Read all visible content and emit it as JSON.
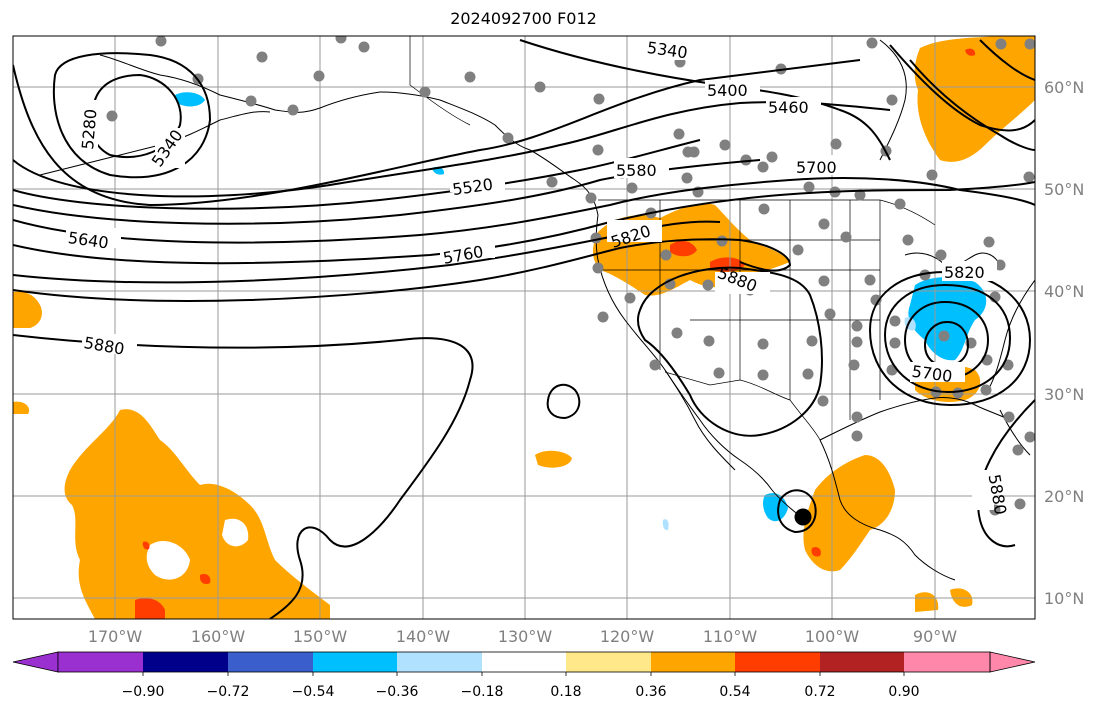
{
  "title": "2024092700 F012",
  "longitude_labels": [
    "170°W",
    "160°W",
    "150°W",
    "140°W",
    "130°W",
    "120°W",
    "110°W",
    "100°W",
    "90°W"
  ],
  "latitude_labels": [
    "60°N",
    "50°N",
    "40°N",
    "30°N",
    "20°N",
    "10°N"
  ],
  "contour_labels": [
    "5340",
    "5400",
    "5460",
    "5280",
    "5340",
    "5520",
    "5580",
    "5700",
    "5640",
    "5760",
    "5820",
    "5880",
    "5880",
    "5820",
    "5700",
    "5880"
  ],
  "colorbar": {
    "ticks": [
      "−0.90",
      "−0.72",
      "−0.54",
      "−0.36",
      "−0.18",
      "0.18",
      "0.36",
      "0.54",
      "0.72",
      "0.90"
    ],
    "colors": [
      "#9b30d0",
      "#00008b",
      "#3a5fcd",
      "#00bfff",
      "#b0e2ff",
      "#ffffff",
      "#ffe88a",
      "#ffa500",
      "#ff3d00",
      "#b22222",
      "#ff88aa"
    ]
  },
  "fill_colors": {
    "orange": "#ffa500",
    "red": "#ff3d00",
    "cyan": "#00bfff",
    "lightblue": "#b0e2ff",
    "yellow": "#ffe88a"
  },
  "station_color": "#808080"
}
